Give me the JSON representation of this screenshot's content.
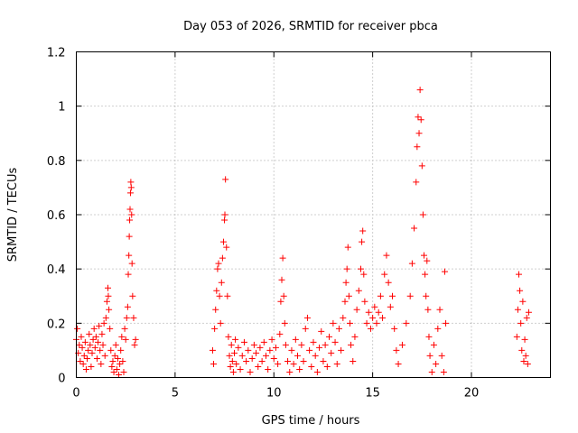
{
  "chart_data": {
    "type": "scatter",
    "title": "Day 053 of 2026, SRMTID for receiver pbca",
    "xlabel": "GPS time / hours",
    "ylabel": "SRMTID / TECUs",
    "xlim": [
      0,
      24
    ],
    "ylim": [
      0,
      1.2
    ],
    "xticks": [
      0,
      5,
      10,
      15,
      20
    ],
    "xtick_labels": [
      "0",
      "5",
      "10",
      "15",
      "20"
    ],
    "yticks": [
      0,
      0.2,
      0.4,
      0.6,
      0.8,
      1.0,
      1.2
    ],
    "ytick_labels": [
      "0",
      "0.2",
      "0.4",
      "0.6",
      "0.8",
      "1",
      "1.2"
    ],
    "grid": true,
    "marker": "plus",
    "series": [
      {
        "name": "SRMTID",
        "color": "#ff0000",
        "points": [
          [
            0.0,
            0.14
          ],
          [
            0.05,
            0.18
          ],
          [
            0.1,
            0.09
          ],
          [
            0.15,
            0.12
          ],
          [
            0.2,
            0.06
          ],
          [
            0.25,
            0.15
          ],
          [
            0.3,
            0.11
          ],
          [
            0.35,
            0.05
          ],
          [
            0.4,
            0.08
          ],
          [
            0.45,
            0.13
          ],
          [
            0.5,
            0.03
          ],
          [
            0.55,
            0.07
          ],
          [
            0.6,
            0.1
          ],
          [
            0.65,
            0.16
          ],
          [
            0.7,
            0.12
          ],
          [
            0.75,
            0.04
          ],
          [
            0.8,
            0.09
          ],
          [
            0.85,
            0.14
          ],
          [
            0.9,
            0.18
          ],
          [
            0.95,
            0.11
          ],
          [
            1.0,
            0.15
          ],
          [
            1.05,
            0.07
          ],
          [
            1.1,
            0.13
          ],
          [
            1.15,
            0.19
          ],
          [
            1.2,
            0.1
          ],
          [
            1.25,
            0.05
          ],
          [
            1.3,
            0.16
          ],
          [
            1.35,
            0.12
          ],
          [
            1.4,
            0.2
          ],
          [
            1.45,
            0.08
          ],
          [
            1.5,
            0.22
          ],
          [
            1.55,
            0.28
          ],
          [
            1.6,
            0.33
          ],
          [
            1.62,
            0.3
          ],
          [
            1.65,
            0.25
          ],
          [
            1.7,
            0.18
          ],
          [
            1.75,
            0.1
          ],
          [
            1.8,
            0.04
          ],
          [
            1.85,
            0.06
          ],
          [
            1.9,
            0.02
          ],
          [
            1.95,
            0.08
          ],
          [
            2.0,
            0.12
          ],
          [
            2.05,
            0.03
          ],
          [
            2.1,
            0.07
          ],
          [
            2.15,
            0.01
          ],
          [
            2.2,
            0.05
          ],
          [
            2.25,
            0.1
          ],
          [
            2.3,
            0.15
          ],
          [
            2.35,
            0.06
          ],
          [
            2.4,
            0.02
          ],
          [
            2.45,
            0.18
          ],
          [
            2.5,
            0.14
          ],
          [
            2.55,
            0.22
          ],
          [
            2.6,
            0.26
          ],
          [
            2.63,
            0.38
          ],
          [
            2.66,
            0.45
          ],
          [
            2.68,
            0.52
          ],
          [
            2.7,
            0.58
          ],
          [
            2.72,
            0.62
          ],
          [
            2.74,
            0.68
          ],
          [
            2.76,
            0.72
          ],
          [
            2.78,
            0.7
          ],
          [
            2.8,
            0.6
          ],
          [
            2.82,
            0.42
          ],
          [
            2.85,
            0.3
          ],
          [
            2.9,
            0.22
          ],
          [
            2.95,
            0.12
          ],
          [
            3.0,
            0.14
          ],
          [
            6.9,
            0.1
          ],
          [
            6.95,
            0.05
          ],
          [
            7.0,
            0.18
          ],
          [
            7.05,
            0.25
          ],
          [
            7.1,
            0.32
          ],
          [
            7.15,
            0.4
          ],
          [
            7.2,
            0.42
          ],
          [
            7.25,
            0.3
          ],
          [
            7.3,
            0.2
          ],
          [
            7.35,
            0.35
          ],
          [
            7.4,
            0.44
          ],
          [
            7.45,
            0.5
          ],
          [
            7.5,
            0.58
          ],
          [
            7.52,
            0.6
          ],
          [
            7.55,
            0.73
          ],
          [
            7.6,
            0.48
          ],
          [
            7.65,
            0.3
          ],
          [
            7.7,
            0.15
          ],
          [
            7.75,
            0.08
          ],
          [
            7.8,
            0.04
          ],
          [
            7.85,
            0.12
          ],
          [
            7.9,
            0.06
          ],
          [
            7.95,
            0.02
          ],
          [
            8.0,
            0.09
          ],
          [
            8.05,
            0.14
          ],
          [
            8.1,
            0.05
          ],
          [
            8.2,
            0.11
          ],
          [
            8.3,
            0.03
          ],
          [
            8.4,
            0.08
          ],
          [
            8.5,
            0.13
          ],
          [
            8.6,
            0.06
          ],
          [
            8.7,
            0.1
          ],
          [
            8.8,
            0.02
          ],
          [
            8.9,
            0.07
          ],
          [
            9.0,
            0.12
          ],
          [
            9.1,
            0.09
          ],
          [
            9.2,
            0.04
          ],
          [
            9.3,
            0.11
          ],
          [
            9.4,
            0.06
          ],
          [
            9.5,
            0.13
          ],
          [
            9.6,
            0.08
          ],
          [
            9.7,
            0.03
          ],
          [
            9.8,
            0.1
          ],
          [
            9.9,
            0.14
          ],
          [
            10.0,
            0.07
          ],
          [
            10.1,
            0.11
          ],
          [
            10.2,
            0.05
          ],
          [
            10.3,
            0.16
          ],
          [
            10.35,
            0.28
          ],
          [
            10.4,
            0.36
          ],
          [
            10.45,
            0.44
          ],
          [
            10.5,
            0.3
          ],
          [
            10.55,
            0.2
          ],
          [
            10.6,
            0.12
          ],
          [
            10.7,
            0.06
          ],
          [
            10.8,
            0.02
          ],
          [
            10.9,
            0.1
          ],
          [
            11.0,
            0.05
          ],
          [
            11.1,
            0.14
          ],
          [
            11.2,
            0.08
          ],
          [
            11.3,
            0.03
          ],
          [
            11.4,
            0.12
          ],
          [
            11.5,
            0.06
          ],
          [
            11.6,
            0.18
          ],
          [
            11.7,
            0.22
          ],
          [
            11.8,
            0.1
          ],
          [
            11.9,
            0.04
          ],
          [
            12.0,
            0.13
          ],
          [
            12.1,
            0.08
          ],
          [
            12.2,
            0.02
          ],
          [
            12.3,
            0.11
          ],
          [
            12.4,
            0.17
          ],
          [
            12.5,
            0.06
          ],
          [
            12.6,
            0.12
          ],
          [
            12.7,
            0.04
          ],
          [
            12.8,
            0.15
          ],
          [
            12.9,
            0.09
          ],
          [
            13.0,
            0.2
          ],
          [
            13.1,
            0.13
          ],
          [
            13.2,
            0.05
          ],
          [
            13.3,
            0.18
          ],
          [
            13.4,
            0.1
          ],
          [
            13.5,
            0.22
          ],
          [
            13.6,
            0.28
          ],
          [
            13.65,
            0.35
          ],
          [
            13.7,
            0.4
          ],
          [
            13.75,
            0.48
          ],
          [
            13.8,
            0.3
          ],
          [
            13.85,
            0.2
          ],
          [
            13.9,
            0.12
          ],
          [
            14.0,
            0.06
          ],
          [
            14.1,
            0.15
          ],
          [
            14.2,
            0.25
          ],
          [
            14.3,
            0.32
          ],
          [
            14.4,
            0.4
          ],
          [
            14.45,
            0.5
          ],
          [
            14.5,
            0.54
          ],
          [
            14.55,
            0.38
          ],
          [
            14.6,
            0.28
          ],
          [
            14.7,
            0.2
          ],
          [
            14.8,
            0.24
          ],
          [
            14.9,
            0.18
          ],
          [
            15.0,
            0.22
          ],
          [
            15.1,
            0.26
          ],
          [
            15.2,
            0.2
          ],
          [
            15.3,
            0.24
          ],
          [
            15.4,
            0.3
          ],
          [
            15.5,
            0.22
          ],
          [
            15.6,
            0.38
          ],
          [
            15.7,
            0.45
          ],
          [
            15.8,
            0.35
          ],
          [
            15.9,
            0.26
          ],
          [
            16.0,
            0.3
          ],
          [
            16.1,
            0.18
          ],
          [
            16.2,
            0.1
          ],
          [
            16.3,
            0.05
          ],
          [
            16.5,
            0.12
          ],
          [
            16.7,
            0.2
          ],
          [
            16.9,
            0.3
          ],
          [
            17.0,
            0.42
          ],
          [
            17.1,
            0.55
          ],
          [
            17.2,
            0.72
          ],
          [
            17.25,
            0.85
          ],
          [
            17.3,
            0.96
          ],
          [
            17.35,
            0.9
          ],
          [
            17.4,
            1.06
          ],
          [
            17.45,
            0.95
          ],
          [
            17.5,
            0.78
          ],
          [
            17.55,
            0.6
          ],
          [
            17.6,
            0.45
          ],
          [
            17.65,
            0.38
          ],
          [
            17.7,
            0.3
          ],
          [
            17.75,
            0.43
          ],
          [
            17.8,
            0.25
          ],
          [
            17.85,
            0.15
          ],
          [
            17.9,
            0.08
          ],
          [
            18.0,
            0.02
          ],
          [
            18.1,
            0.12
          ],
          [
            18.2,
            0.05
          ],
          [
            18.3,
            0.18
          ],
          [
            18.4,
            0.25
          ],
          [
            18.5,
            0.08
          ],
          [
            18.6,
            0.02
          ],
          [
            18.65,
            0.39
          ],
          [
            18.7,
            0.2
          ],
          [
            22.3,
            0.15
          ],
          [
            22.35,
            0.25
          ],
          [
            22.4,
            0.38
          ],
          [
            22.45,
            0.32
          ],
          [
            22.5,
            0.2
          ],
          [
            22.55,
            0.1
          ],
          [
            22.6,
            0.28
          ],
          [
            22.65,
            0.06
          ],
          [
            22.7,
            0.14
          ],
          [
            22.75,
            0.08
          ],
          [
            22.8,
            0.22
          ],
          [
            22.85,
            0.05
          ],
          [
            22.9,
            0.24
          ]
        ]
      }
    ]
  }
}
